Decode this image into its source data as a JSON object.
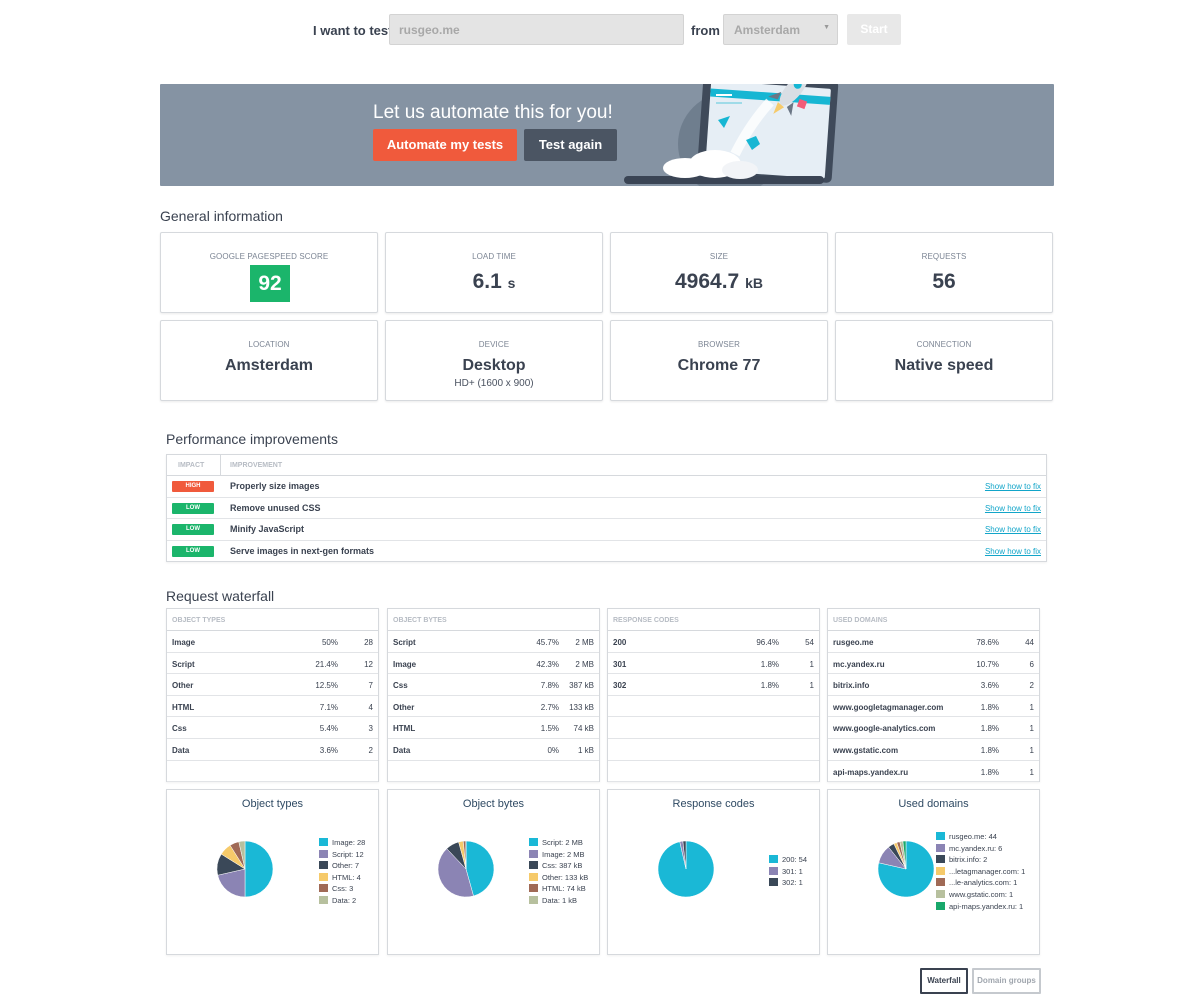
{
  "search": {
    "label_test": "I want to test",
    "url_value": "rusgeo.me",
    "label_from": "from",
    "location_value": "Amsterdam",
    "start_label": "Start"
  },
  "banner": {
    "title": "Let us automate this for you!",
    "automate_label": "Automate my tests",
    "again_label": "Test again"
  },
  "general": {
    "title": "General information",
    "cards": [
      {
        "label": "GOOGLE PAGESPEED SCORE",
        "value": "92"
      },
      {
        "label": "LOAD TIME",
        "value": "6.1",
        "unit": "s"
      },
      {
        "label": "SIZE",
        "value": "4964.7",
        "unit": "kB"
      },
      {
        "label": "REQUESTS",
        "value": "56"
      },
      {
        "label": "LOCATION",
        "value": "Amsterdam"
      },
      {
        "label": "DEVICE",
        "value": "Desktop",
        "sub": "HD+ (1600 x 900)"
      },
      {
        "label": "BROWSER",
        "value": "Chrome 77"
      },
      {
        "label": "CONNECTION",
        "value": "Native speed"
      }
    ]
  },
  "performance": {
    "title": "Performance improvements",
    "col_impact": "IMPACT",
    "col_improvement": "IMPROVEMENT",
    "rows": [
      {
        "impact": "HIGH",
        "text": "Properly size images",
        "link": "Show how to fix"
      },
      {
        "impact": "LOW",
        "text": "Remove unused CSS",
        "link": "Show how to fix"
      },
      {
        "impact": "LOW",
        "text": "Minify JavaScript",
        "link": "Show how to fix"
      },
      {
        "impact": "LOW",
        "text": "Serve images in next-gen formats",
        "link": "Show how to fix"
      }
    ]
  },
  "waterfall": {
    "title": "Request waterfall",
    "tables": [
      {
        "header": "OBJECT TYPES",
        "rows": [
          {
            "name": "Image",
            "pct": "50%",
            "val": "28"
          },
          {
            "name": "Script",
            "pct": "21.4%",
            "val": "12"
          },
          {
            "name": "Other",
            "pct": "12.5%",
            "val": "7"
          },
          {
            "name": "HTML",
            "pct": "7.1%",
            "val": "4"
          },
          {
            "name": "Css",
            "pct": "5.4%",
            "val": "3"
          },
          {
            "name": "Data",
            "pct": "3.6%",
            "val": "2"
          },
          {
            "name": "",
            "pct": "",
            "val": ""
          }
        ]
      },
      {
        "header": "OBJECT BYTES",
        "rows": [
          {
            "name": "Script",
            "pct": "45.7%",
            "val": "2 MB"
          },
          {
            "name": "Image",
            "pct": "42.3%",
            "val": "2 MB"
          },
          {
            "name": "Css",
            "pct": "7.8%",
            "val": "387 kB"
          },
          {
            "name": "Other",
            "pct": "2.7%",
            "val": "133 kB"
          },
          {
            "name": "HTML",
            "pct": "1.5%",
            "val": "74 kB"
          },
          {
            "name": "Data",
            "pct": "0%",
            "val": "1 kB"
          },
          {
            "name": "",
            "pct": "",
            "val": ""
          }
        ]
      },
      {
        "header": "RESPONSE CODES",
        "rows": [
          {
            "name": "200",
            "pct": "96.4%",
            "val": "54"
          },
          {
            "name": "301",
            "pct": "1.8%",
            "val": "1"
          },
          {
            "name": "302",
            "pct": "1.8%",
            "val": "1"
          },
          {
            "name": "",
            "pct": "",
            "val": ""
          },
          {
            "name": "",
            "pct": "",
            "val": ""
          },
          {
            "name": "",
            "pct": "",
            "val": ""
          },
          {
            "name": "",
            "pct": "",
            "val": ""
          }
        ]
      },
      {
        "header": "USED DOMAINS",
        "rows": [
          {
            "name": "rusgeo.me",
            "pct": "78.6%",
            "val": "44"
          },
          {
            "name": "mc.yandex.ru",
            "pct": "10.7%",
            "val": "6"
          },
          {
            "name": "bitrix.info",
            "pct": "3.6%",
            "val": "2"
          },
          {
            "name": "www.googletagmanager.com",
            "pct": "1.8%",
            "val": "1"
          },
          {
            "name": "www.google-analytics.com",
            "pct": "1.8%",
            "val": "1"
          },
          {
            "name": "www.gstatic.com",
            "pct": "1.8%",
            "val": "1"
          },
          {
            "name": "api-maps.yandex.ru",
            "pct": "1.8%",
            "val": "1"
          }
        ]
      }
    ]
  },
  "chart_data": [
    {
      "type": "pie",
      "title": "Object types",
      "labels": [
        "Image: 28",
        "Script: 12",
        "Other: 7",
        "HTML: 4",
        "Css: 3",
        "Data: 2"
      ],
      "values": [
        28,
        12,
        7,
        4,
        3,
        2
      ],
      "colors": [
        "#1ab8d6",
        "#8b84b4",
        "#3a4858",
        "#f6ca6a",
        "#a06a56",
        "#b7c09e"
      ]
    },
    {
      "type": "pie",
      "title": "Object bytes",
      "labels": [
        "Script: 2 MB",
        "Image: 2 MB",
        "Css: 387 kB",
        "Other: 133 kB",
        "HTML: 74 kB",
        "Data: 1 kB"
      ],
      "values": [
        45.7,
        42.3,
        7.8,
        2.7,
        1.5,
        0.05
      ],
      "colors": [
        "#1ab8d6",
        "#8b84b4",
        "#3a4858",
        "#f6ca6a",
        "#a06a56",
        "#b7c09e"
      ]
    },
    {
      "type": "pie",
      "title": "Response codes",
      "labels": [
        "200: 54",
        "301: 1",
        "302: 1"
      ],
      "values": [
        54,
        1,
        1
      ],
      "colors": [
        "#1ab8d6",
        "#8b84b4",
        "#3a4858"
      ]
    },
    {
      "type": "pie",
      "title": "Used domains",
      "labels": [
        "rusgeo.me: 44",
        "mc.yandex.ru: 6",
        "bitrix.info: 2",
        "...letagmanager.com: 1",
        "...le-analytics.com: 1",
        "www.gstatic.com: 1",
        "api-maps.yandex.ru: 1"
      ],
      "values": [
        44,
        6,
        2,
        1,
        1,
        1,
        1
      ],
      "colors": [
        "#1ab8d6",
        "#8b84b4",
        "#3a4858",
        "#f6ca6a",
        "#a06a56",
        "#b7c09e",
        "#19a86b"
      ]
    }
  ],
  "footer": {
    "waterfall_label": "Waterfall",
    "domain_groups_label": "Domain groups"
  }
}
